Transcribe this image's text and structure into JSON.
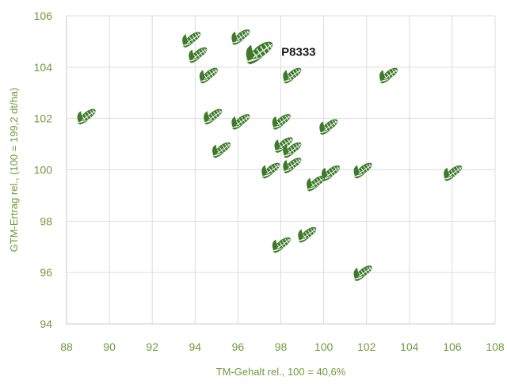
{
  "chart_data": {
    "type": "scatter",
    "title": "",
    "xlabel": "TM-Gehalt rel., 100 = 40,6%",
    "ylabel": "GTM-Ertrag rel., (100 = 199,2 dt/ha)",
    "xlim": [
      88,
      108
    ],
    "ylim": [
      94,
      106
    ],
    "x_ticks": [
      "88",
      "90",
      "92",
      "94",
      "96",
      "98",
      "100",
      "102",
      "104",
      "106",
      "108"
    ],
    "y_ticks": [
      "94",
      "96",
      "98",
      "100",
      "102",
      "104",
      "106"
    ],
    "grid": true,
    "marker": "corn-cob-icon",
    "colors": {
      "marker": "#3d7a2a",
      "highlight_marker": "#3d7a2a",
      "axis_text": "#6f9a3c",
      "grid": "#dddddd"
    },
    "points": [
      {
        "x": 89.0,
        "y": 102.1
      },
      {
        "x": 93.9,
        "y": 105.1
      },
      {
        "x": 94.2,
        "y": 104.5
      },
      {
        "x": 94.7,
        "y": 103.7
      },
      {
        "x": 94.9,
        "y": 102.1
      },
      {
        "x": 95.3,
        "y": 100.8
      },
      {
        "x": 96.2,
        "y": 105.2
      },
      {
        "x": 96.2,
        "y": 101.9
      },
      {
        "x": 97.6,
        "y": 100.0
      },
      {
        "x": 98.1,
        "y": 101.9
      },
      {
        "x": 98.2,
        "y": 101.0
      },
      {
        "x": 98.1,
        "y": 97.1
      },
      {
        "x": 98.6,
        "y": 103.7
      },
      {
        "x": 98.6,
        "y": 100.8
      },
      {
        "x": 98.6,
        "y": 100.2
      },
      {
        "x": 99.3,
        "y": 97.5
      },
      {
        "x": 99.7,
        "y": 99.5
      },
      {
        "x": 100.3,
        "y": 101.7
      },
      {
        "x": 100.4,
        "y": 99.9
      },
      {
        "x": 101.9,
        "y": 100.0
      },
      {
        "x": 101.9,
        "y": 96.0
      },
      {
        "x": 103.1,
        "y": 103.7
      },
      {
        "x": 106.1,
        "y": 99.9
      }
    ],
    "highlight": {
      "x": 97.1,
      "y": 104.6,
      "label": "P8333"
    }
  }
}
